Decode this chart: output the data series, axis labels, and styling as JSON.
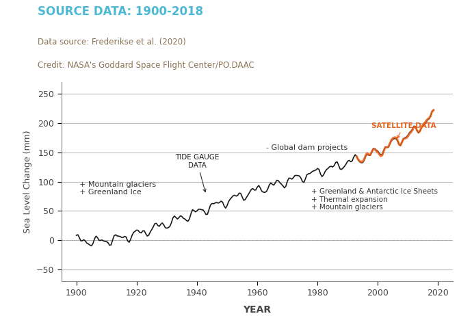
{
  "title": "SOURCE DATA: 1900-2018",
  "title_color": "#4db8d4",
  "source_line1": "Data source: Frederikse et al. (2020)",
  "source_line2": "Credit: NASA's Goddard Space Flight Center/PO.DAAC",
  "source_color": "#8B7355",
  "xlabel": "YEAR",
  "ylabel": "Sea Level Change (mm)",
  "xlim": [
    1895,
    2025
  ],
  "ylim": [
    -70,
    270
  ],
  "yticks": [
    -50,
    0,
    50,
    100,
    150,
    200,
    250
  ],
  "xticks": [
    1900,
    1920,
    1940,
    1960,
    1980,
    2000,
    2020
  ],
  "grid_color": "#bbbbbb",
  "bg_color": "#ffffff",
  "black_line_color": "#1a1a1a",
  "orange_line_color": "#E8611A",
  "satellite_start_year": 1993,
  "waypoints": [
    [
      1900,
      5
    ],
    [
      1902,
      2
    ],
    [
      1904,
      -5
    ],
    [
      1906,
      -8
    ],
    [
      1908,
      -12
    ],
    [
      1910,
      -10
    ],
    [
      1912,
      5
    ],
    [
      1914,
      8
    ],
    [
      1916,
      12
    ],
    [
      1918,
      15
    ],
    [
      1920,
      20
    ],
    [
      1922,
      28
    ],
    [
      1924,
      25
    ],
    [
      1926,
      22
    ],
    [
      1928,
      24
    ],
    [
      1930,
      20
    ],
    [
      1932,
      18
    ],
    [
      1934,
      22
    ],
    [
      1936,
      30
    ],
    [
      1938,
      38
    ],
    [
      1940,
      45
    ],
    [
      1942,
      52
    ],
    [
      1944,
      58
    ],
    [
      1946,
      65
    ],
    [
      1948,
      72
    ],
    [
      1950,
      68
    ],
    [
      1952,
      75
    ],
    [
      1954,
      80
    ],
    [
      1956,
      78
    ],
    [
      1958,
      82
    ],
    [
      1960,
      88
    ],
    [
      1962,
      95
    ],
    [
      1964,
      93
    ],
    [
      1966,
      90
    ],
    [
      1968,
      95
    ],
    [
      1970,
      100
    ],
    [
      1972,
      105
    ],
    [
      1974,
      110
    ],
    [
      1976,
      112
    ],
    [
      1978,
      115
    ],
    [
      1980,
      118
    ],
    [
      1982,
      120
    ],
    [
      1984,
      122
    ],
    [
      1986,
      118
    ],
    [
      1988,
      122
    ],
    [
      1990,
      128
    ],
    [
      1992,
      130
    ],
    [
      1994,
      138
    ],
    [
      1996,
      148
    ],
    [
      1998,
      145
    ],
    [
      2000,
      155
    ],
    [
      2002,
      162
    ],
    [
      2004,
      165
    ],
    [
      2006,
      170
    ],
    [
      2008,
      175
    ],
    [
      2010,
      180
    ],
    [
      2012,
      185
    ],
    [
      2014,
      192
    ],
    [
      2016,
      200
    ],
    [
      2018,
      210
    ]
  ],
  "osc_params": [
    {
      "amp": 10,
      "period": 6.5,
      "phase": 0.8
    },
    {
      "amp": 6,
      "period": 3.2,
      "phase": 1.5
    },
    {
      "amp": 3,
      "period": 2.0,
      "phase": 0.3
    }
  ],
  "noise_seed": 42,
  "noise_std": 2.0,
  "noise_smooth": 1.5,
  "osc_scale": 0.6,
  "noise_scale": 0.5
}
